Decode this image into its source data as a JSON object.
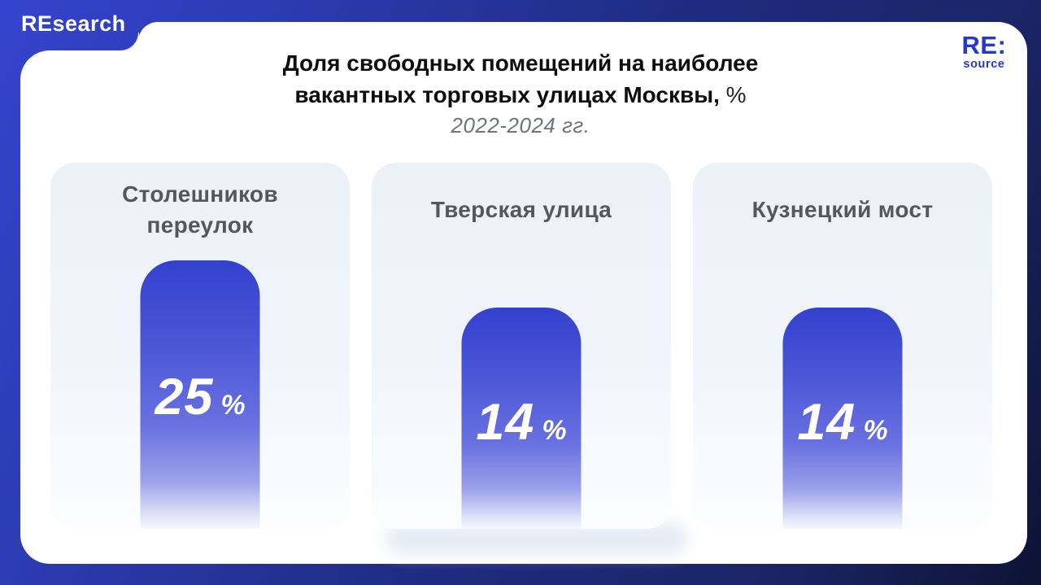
{
  "brand": {
    "wordmark": "REsearch",
    "logo_top": "RE:",
    "logo_bottom": "source"
  },
  "header": {
    "title_line1": "Доля свободных помещений на наиболее",
    "title_line2": "вакантных торговых улицах Москвы,",
    "title_unit": "%",
    "subtitle": "2022-2024 гг."
  },
  "cards": [
    {
      "label": "Столешников переулок",
      "value": "25",
      "unit": "%"
    },
    {
      "label": "Тверская улица",
      "value": "14",
      "unit": "%"
    },
    {
      "label": "Кузнецкий мост",
      "value": "14",
      "unit": "%"
    }
  ],
  "colors": {
    "bar_blue_top": "#3341ce",
    "frame_blue": "#3544cd",
    "frame_navy": "#0d1334",
    "logo_blue": "#2638d0",
    "card_bg": "#eef2f9",
    "heading_gray": "#54575e"
  },
  "chart_data": {
    "type": "bar",
    "title": "Доля свободных помещений на наиболее вакантных торговых улицах Москвы, %",
    "subtitle": "2022-2024 гг.",
    "categories": [
      "Столешников переулок",
      "Тверская улица",
      "Кузнецкий мост"
    ],
    "values": [
      25,
      14,
      14
    ],
    "unit": "%",
    "orientation": "vertical",
    "grid": false,
    "legend": false,
    "data_labels": "inside bars"
  }
}
